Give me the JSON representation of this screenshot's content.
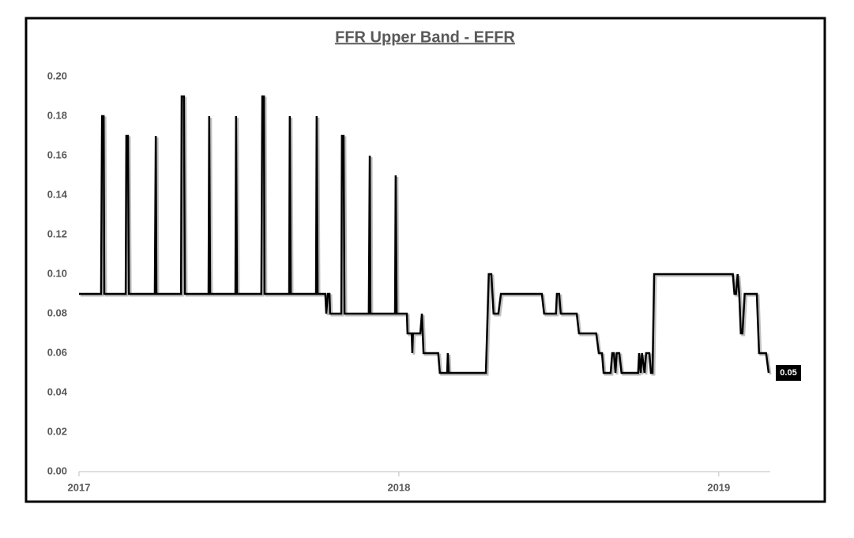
{
  "chart_data": {
    "type": "line",
    "title": "FFR Upper Band - EFFR",
    "color": "#000000",
    "x": [
      2017.0,
      2017.069,
      2017.072,
      2017.077,
      2017.079,
      2017.146,
      2017.148,
      2017.153,
      2017.156,
      2017.237,
      2017.24,
      2017.242,
      2017.319,
      2017.321,
      2017.328,
      2017.331,
      2017.405,
      2017.407,
      2017.41,
      2017.489,
      2017.491,
      2017.494,
      2017.57,
      2017.573,
      2017.578,
      2017.58,
      2017.657,
      2017.659,
      2017.662,
      2017.741,
      2017.743,
      2017.746,
      2017.77,
      2017.773,
      2017.778,
      2017.783,
      2017.785,
      2017.82,
      2017.822,
      2017.827,
      2017.83,
      2017.906,
      2017.909,
      2017.911,
      2017.988,
      2017.99,
      2017.993,
      2018.025,
      2018.027,
      2018.04,
      2018.042,
      2018.044,
      2018.067,
      2018.072,
      2018.077,
      2018.123,
      2018.128,
      2018.151,
      2018.153,
      2018.156,
      2018.272,
      2018.281,
      2018.289,
      2018.296,
      2018.311,
      2018.319,
      2018.447,
      2018.454,
      2018.491,
      2018.494,
      2018.501,
      2018.506,
      2018.556,
      2018.563,
      2018.617,
      2018.625,
      2018.635,
      2018.64,
      2018.662,
      2018.667,
      2018.672,
      2018.677,
      2018.681,
      2018.689,
      2018.696,
      2018.748,
      2018.751,
      2018.756,
      2018.76,
      2018.768,
      2018.773,
      2018.783,
      2018.788,
      2018.793,
      2018.798,
      2019.044,
      2019.049,
      2019.054,
      2019.059,
      2019.064,
      2019.069,
      2019.074,
      2019.081,
      2019.119,
      2019.126,
      2019.148,
      2019.156
    ],
    "values": [
      0.09,
      0.09,
      0.18,
      0.18,
      0.09,
      0.09,
      0.17,
      0.17,
      0.09,
      0.09,
      0.17,
      0.09,
      0.09,
      0.19,
      0.19,
      0.09,
      0.09,
      0.18,
      0.09,
      0.09,
      0.18,
      0.09,
      0.09,
      0.19,
      0.19,
      0.09,
      0.09,
      0.18,
      0.09,
      0.09,
      0.18,
      0.09,
      0.09,
      0.08,
      0.09,
      0.09,
      0.08,
      0.08,
      0.17,
      0.17,
      0.08,
      0.08,
      0.16,
      0.08,
      0.08,
      0.15,
      0.08,
      0.08,
      0.07,
      0.07,
      0.06,
      0.07,
      0.07,
      0.08,
      0.06,
      0.06,
      0.05,
      0.05,
      0.06,
      0.05,
      0.05,
      0.1,
      0.1,
      0.08,
      0.08,
      0.09,
      0.09,
      0.08,
      0.08,
      0.09,
      0.09,
      0.08,
      0.08,
      0.07,
      0.07,
      0.06,
      0.06,
      0.05,
      0.05,
      0.06,
      0.06,
      0.05,
      0.06,
      0.06,
      0.05,
      0.05,
      0.06,
      0.05,
      0.06,
      0.05,
      0.06,
      0.06,
      0.05,
      0.05,
      0.1,
      0.1,
      0.09,
      0.09,
      0.1,
      0.09,
      0.07,
      0.07,
      0.09,
      0.09,
      0.06,
      0.06,
      0.05
    ],
    "xlim": [
      2017,
      2019.161
    ],
    "xticks": [
      2017,
      2018,
      2019
    ],
    "ylim": [
      0,
      0.2
    ],
    "yticks": [
      {
        "value": 0,
        "label": "0.00"
      },
      0.02,
      0.04,
      0.06,
      0.08,
      {
        "value": 0.1,
        "label": "0.10"
      },
      0.12,
      0.14,
      0.16,
      0.18,
      {
        "value": 0.2,
        "label": "0.20"
      }
    ],
    "grid": false
  }
}
